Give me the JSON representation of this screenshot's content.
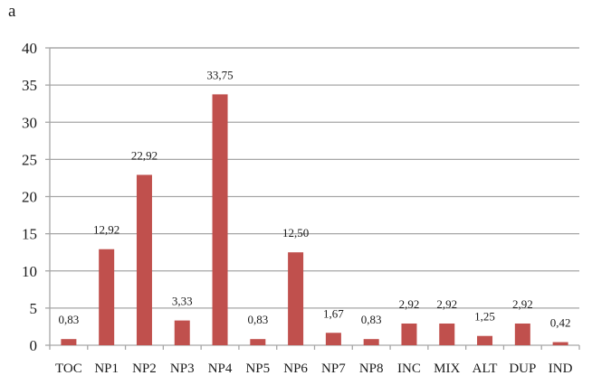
{
  "panel_label": "a",
  "chart_data": {
    "type": "bar",
    "title": "",
    "xlabel": "",
    "ylabel": "",
    "ylim": [
      0,
      40
    ],
    "yticks": [
      0,
      5,
      10,
      15,
      20,
      25,
      30,
      35,
      40
    ],
    "grid": true,
    "legend": null,
    "bar_color": "#c0504d",
    "categories": [
      "TOC",
      "NP1",
      "NP2",
      "NP3",
      "NP4",
      "NP5",
      "NP6",
      "NP7",
      "NP8",
      "INC",
      "MIX",
      "ALT",
      "DUP",
      "IND"
    ],
    "values": [
      0.83,
      12.92,
      22.92,
      3.33,
      33.75,
      0.83,
      12.5,
      1.67,
      0.83,
      2.92,
      2.92,
      1.25,
      2.92,
      0.42
    ],
    "data_labels": [
      "0,83",
      "12,92",
      "22,92",
      "3,33",
      "33,75",
      "0,83",
      "12,50",
      "1,67",
      "0,83",
      "2,92",
      "2,92",
      "1,25",
      "2,92",
      "0,42"
    ]
  }
}
